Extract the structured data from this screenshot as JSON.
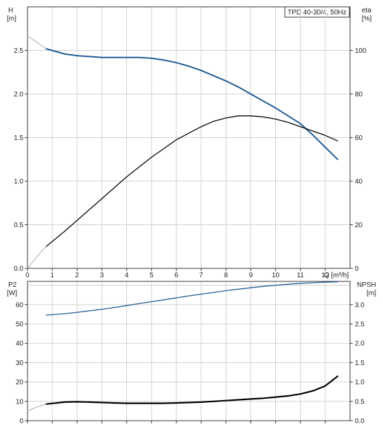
{
  "chart_data": [
    {
      "type": "line",
      "title": "TPD 40-30/4, 50Hz",
      "xlabel": "Q [m³/h]",
      "x_ticks": [
        "0",
        "1",
        "2",
        "3",
        "4",
        "5",
        "6",
        "7",
        "8",
        "9",
        "10",
        "11",
        "12"
      ],
      "xlim": [
        0,
        13.0
      ],
      "left_axis": {
        "label_top": "H",
        "label_unit": "[m]",
        "ylim": [
          0,
          3.0
        ],
        "ticks": [
          "0.0",
          "0.5",
          "1.0",
          "1.5",
          "2.0",
          "2.5"
        ]
      },
      "right_axis": {
        "label_top": "eta",
        "label_unit": "[%]",
        "ylim": [
          0,
          120
        ],
        "ticks": [
          "0",
          "20",
          "40",
          "60",
          "80",
          "100"
        ]
      },
      "grid": true,
      "series": [
        {
          "id": "head",
          "axis": "left",
          "color": "#1f5a96",
          "x": [
            0.75,
            1.5,
            2.0,
            2.5,
            3.0,
            3.5,
            4.0,
            4.5,
            5.0,
            5.5,
            6.0,
            6.5,
            7.0,
            7.5,
            8.0,
            8.5,
            9.0,
            9.5,
            10.0,
            10.5,
            11.0,
            11.5,
            12.0,
            12.5
          ],
          "y": [
            2.52,
            2.46,
            2.44,
            2.43,
            2.42,
            2.42,
            2.42,
            2.42,
            2.41,
            2.39,
            2.36,
            2.32,
            2.27,
            2.21,
            2.15,
            2.08,
            2.0,
            1.92,
            1.84,
            1.75,
            1.66,
            1.53,
            1.39,
            1.25
          ]
        },
        {
          "id": "head-extrapolated",
          "axis": "left",
          "color": "#aaaaaa",
          "x": [
            0.0,
            0.25,
            0.5,
            0.75
          ],
          "y": [
            2.67,
            2.62,
            2.57,
            2.52
          ]
        },
        {
          "id": "efficiency",
          "axis": "right",
          "color": "#000000",
          "x": [
            0.75,
            1.5,
            2.0,
            2.5,
            3.0,
            3.5,
            4.0,
            4.5,
            5.0,
            5.5,
            6.0,
            6.5,
            7.0,
            7.5,
            8.0,
            8.5,
            9.0,
            9.5,
            10.0,
            10.5,
            11.0,
            11.5,
            12.0,
            12.5
          ],
          "y": [
            10,
            17,
            22,
            27,
            32,
            37,
            42,
            46.5,
            51,
            55,
            59,
            62,
            65,
            67.5,
            69,
            70,
            70,
            69.5,
            68.5,
            67,
            65,
            63,
            61,
            58.5
          ]
        },
        {
          "id": "efficiency-extrapolated",
          "axis": "right",
          "color": "#aaaaaa",
          "x": [
            0.0,
            0.25,
            0.5,
            0.75
          ],
          "y": [
            0,
            3.5,
            7,
            10
          ]
        }
      ]
    },
    {
      "type": "line",
      "xlim": [
        0,
        13.0
      ],
      "left_axis": {
        "label_top": "P2",
        "label_unit": "[W]",
        "ylim": [
          0,
          72
        ],
        "ticks": [
          "0",
          "10",
          "20",
          "30",
          "40",
          "50",
          "60"
        ]
      },
      "right_axis": {
        "label_top": "NPSH",
        "label_unit": "[m]",
        "ylim": [
          0,
          3.6
        ],
        "ticks": [
          "0.0",
          "0.5",
          "1.0",
          "1.5",
          "2.0",
          "2.5",
          "3.0"
        ]
      },
      "grid": true,
      "series": [
        {
          "id": "power",
          "axis": "left",
          "color": "#1f5a96",
          "x": [
            0.75,
            1.5,
            2.0,
            2.5,
            3.0,
            3.5,
            4.0,
            4.5,
            5.0,
            5.5,
            6.0,
            6.5,
            7.0,
            7.5,
            8.0,
            8.5,
            9.0,
            9.5,
            10.0,
            10.5,
            11.0,
            11.5,
            12.0,
            12.5
          ],
          "y": [
            54.6,
            55.3,
            56.0,
            56.8,
            57.6,
            58.5,
            59.5,
            60.5,
            61.5,
            62.5,
            63.5,
            64.5,
            65.4,
            66.3,
            67.2,
            68.0,
            68.7,
            69.4,
            70.0,
            70.5,
            71.0,
            71.3,
            71.6,
            71.8
          ]
        },
        {
          "id": "npsh",
          "axis": "right",
          "color": "#000000",
          "x": [
            0.75,
            1.5,
            2.0,
            2.5,
            3.0,
            3.5,
            4.0,
            4.5,
            5.0,
            5.5,
            6.0,
            6.5,
            7.0,
            7.5,
            8.0,
            8.5,
            9.0,
            9.5,
            10.0,
            10.5,
            11.0,
            11.5,
            12.0,
            12.5
          ],
          "y": [
            0.43,
            0.48,
            0.49,
            0.48,
            0.47,
            0.46,
            0.45,
            0.45,
            0.45,
            0.45,
            0.46,
            0.47,
            0.48,
            0.5,
            0.52,
            0.54,
            0.56,
            0.58,
            0.61,
            0.64,
            0.69,
            0.77,
            0.9,
            1.15
          ]
        },
        {
          "id": "npsh-extrapolated",
          "axis": "right",
          "color": "#aaaaaa",
          "x": [
            0.0,
            0.25,
            0.5,
            0.75
          ],
          "y": [
            0.25,
            0.32,
            0.38,
            0.43
          ]
        }
      ]
    }
  ]
}
